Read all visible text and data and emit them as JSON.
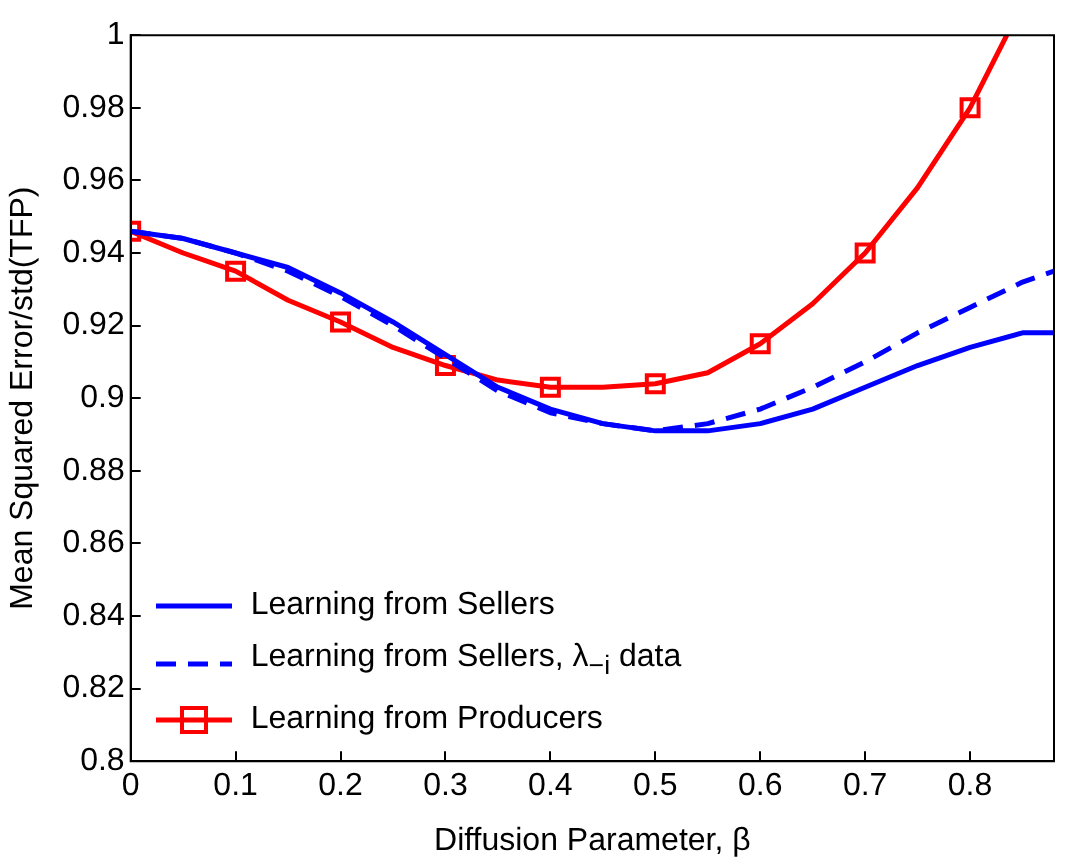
{
  "chart_data": {
    "type": "line",
    "xlabel": "Diffusion Parameter, β",
    "ylabel": "Mean Squared Error/std(TFP)",
    "xlim": [
      0,
      0.88
    ],
    "xticks": [
      0,
      0.1,
      0.2,
      0.3,
      0.4,
      0.5,
      0.6,
      0.7,
      0.8
    ],
    "ylim": [
      0.8,
      1
    ],
    "yticks": [
      0.8,
      0.82,
      0.84,
      0.86,
      0.88,
      0.9,
      0.92,
      0.94,
      0.96,
      0.98,
      1
    ],
    "grid": false,
    "legend": "bottom left",
    "series": [
      {
        "name": "Learning from Sellers",
        "color": "#0000ff",
        "marker": "none",
        "line_style": "solid",
        "x": [
          0,
          0.05,
          0.1,
          0.15,
          0.2,
          0.25,
          0.3,
          0.35,
          0.4,
          0.45,
          0.5,
          0.55,
          0.6,
          0.65,
          0.7,
          0.75,
          0.8,
          0.85,
          0.88
        ],
        "values": [
          0.946,
          0.944,
          0.94,
          0.936,
          0.929,
          0.921,
          0.912,
          0.903,
          0.897,
          0.893,
          0.891,
          0.891,
          0.893,
          0.897,
          0.903,
          0.909,
          0.914,
          0.918,
          0.918
        ]
      },
      {
        "name": "Learning from Sellers, λ$_{−i}$ data",
        "color": "#0000ff",
        "marker": "none",
        "line_style": "dashed",
        "x": [
          0,
          0.05,
          0.1,
          0.15,
          0.2,
          0.25,
          0.3,
          0.35,
          0.4,
          0.45,
          0.5,
          0.55,
          0.6,
          0.65,
          0.7,
          0.75,
          0.8,
          0.85,
          0.88
        ],
        "values": [
          0.946,
          0.944,
          0.94,
          0.935,
          0.928,
          0.92,
          0.911,
          0.902,
          0.896,
          0.893,
          0.891,
          0.893,
          0.897,
          0.903,
          0.91,
          0.918,
          0.925,
          0.932,
          0.935
        ]
      },
      {
        "name": "Learning from Producers",
        "color": "#ff0000",
        "marker": "square",
        "line_style": "solid",
        "x": [
          0,
          0.05,
          0.1,
          0.15,
          0.2,
          0.25,
          0.3,
          0.35,
          0.4,
          0.45,
          0.5,
          0.55,
          0.6,
          0.65,
          0.7,
          0.75,
          0.8,
          0.835
        ],
        "values": [
          0.946,
          0.94,
          0.935,
          0.927,
          0.921,
          0.914,
          0.909,
          0.905,
          0.903,
          0.903,
          0.904,
          0.907,
          0.915,
          0.926,
          0.94,
          0.958,
          0.98,
          1
        ]
      }
    ]
  }
}
